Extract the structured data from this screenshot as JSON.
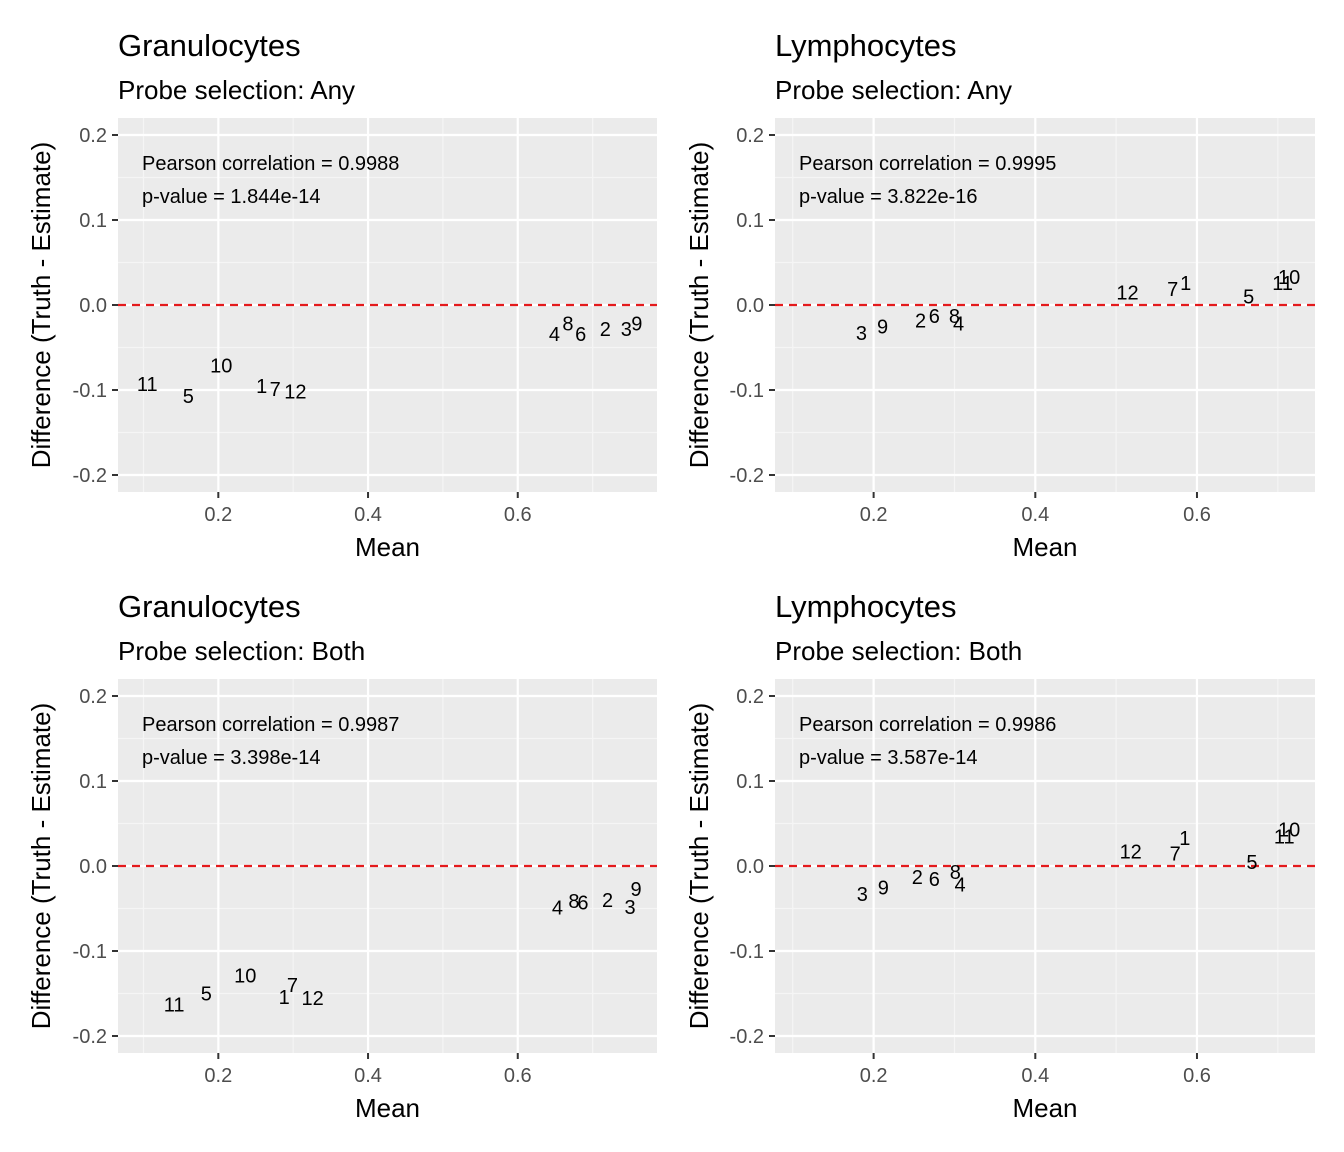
{
  "chart_data": [
    {
      "type": "scatter",
      "title": "Granulocytes",
      "subtitle": "Probe selection: Any",
      "xlabel": "Mean",
      "ylabel": "Difference (Truth - Estimate)",
      "xlim": [
        0.066,
        0.786
      ],
      "ylim": [
        -0.22,
        0.22
      ],
      "xticks": [
        0.2,
        0.4,
        0.6
      ],
      "yticks": [
        -0.2,
        -0.1,
        0.0,
        0.1,
        0.2
      ],
      "xtick_labels": [
        "0.2",
        "0.4",
        "0.6"
      ],
      "ytick_labels": [
        "-0.2",
        "-0.1",
        "0.0",
        "0.1",
        "0.2"
      ],
      "reference_line": {
        "y": 0.0,
        "color": "#e41a1c",
        "style": "dashed"
      },
      "annotations": [
        "Pearson correlation = 0.9988",
        "p-value = 1.844e-14"
      ],
      "grid": true,
      "points": [
        {
          "label": "1",
          "x": 0.258,
          "y": -0.095
        },
        {
          "label": "2",
          "x": 0.717,
          "y": -0.028
        },
        {
          "label": "3",
          "x": 0.745,
          "y": -0.028
        },
        {
          "label": "4",
          "x": 0.649,
          "y": -0.034
        },
        {
          "label": "5",
          "x": 0.16,
          "y": -0.107
        },
        {
          "label": "6",
          "x": 0.684,
          "y": -0.034
        },
        {
          "label": "7",
          "x": 0.276,
          "y": -0.099
        },
        {
          "label": "8",
          "x": 0.667,
          "y": -0.022
        },
        {
          "label": "9",
          "x": 0.759,
          "y": -0.022
        },
        {
          "label": "10",
          "x": 0.204,
          "y": -0.071
        },
        {
          "label": "11",
          "x": 0.105,
          "y": -0.093
        },
        {
          "label": "12",
          "x": 0.303,
          "y": -0.102
        }
      ]
    },
    {
      "type": "scatter",
      "title": "Lymphocytes",
      "subtitle": "Probe selection: Any",
      "xlabel": "Mean",
      "ylabel": "Difference (Truth - Estimate)",
      "xlim": [
        0.078,
        0.746
      ],
      "ylim": [
        -0.22,
        0.22
      ],
      "xticks": [
        0.2,
        0.4,
        0.6
      ],
      "yticks": [
        -0.2,
        -0.1,
        0.0,
        0.1,
        0.2
      ],
      "xtick_labels": [
        "0.2",
        "0.4",
        "0.6"
      ],
      "ytick_labels": [
        "-0.2",
        "-0.1",
        "0.0",
        "0.1",
        "0.2"
      ],
      "reference_line": {
        "y": 0.0,
        "color": "#e41a1c",
        "style": "dashed"
      },
      "annotations": [
        "Pearson correlation = 0.9995",
        "p-value = 3.822e-16"
      ],
      "grid": true,
      "points": [
        {
          "label": "1",
          "x": 0.586,
          "y": 0.026
        },
        {
          "label": "2",
          "x": 0.258,
          "y": -0.018
        },
        {
          "label": "3",
          "x": 0.185,
          "y": -0.033
        },
        {
          "label": "4",
          "x": 0.305,
          "y": -0.022
        },
        {
          "label": "5",
          "x": 0.664,
          "y": 0.01
        },
        {
          "label": "6",
          "x": 0.275,
          "y": -0.013
        },
        {
          "label": "7",
          "x": 0.57,
          "y": 0.019
        },
        {
          "label": "8",
          "x": 0.3,
          "y": -0.013
        },
        {
          "label": "9",
          "x": 0.211,
          "y": -0.025
        },
        {
          "label": "10",
          "x": 0.714,
          "y": 0.033
        },
        {
          "label": "11",
          "x": 0.706,
          "y": 0.026
        },
        {
          "label": "12",
          "x": 0.514,
          "y": 0.015
        }
      ]
    },
    {
      "type": "scatter",
      "title": "Granulocytes",
      "subtitle": "Probe selection: Both",
      "xlabel": "Mean",
      "ylabel": "Difference (Truth - Estimate)",
      "xlim": [
        0.066,
        0.786
      ],
      "ylim": [
        -0.22,
        0.22
      ],
      "xticks": [
        0.2,
        0.4,
        0.6
      ],
      "yticks": [
        -0.2,
        -0.1,
        0.0,
        0.1,
        0.2
      ],
      "xtick_labels": [
        "0.2",
        "0.4",
        "0.6"
      ],
      "ytick_labels": [
        "-0.2",
        "-0.1",
        "0.0",
        "0.1",
        "0.2"
      ],
      "reference_line": {
        "y": 0.0,
        "color": "#e41a1c",
        "style": "dashed"
      },
      "annotations": [
        "Pearson correlation = 0.9987",
        "p-value = 3.398e-14"
      ],
      "grid": true,
      "points": [
        {
          "label": "1",
          "x": 0.288,
          "y": -0.154
        },
        {
          "label": "2",
          "x": 0.72,
          "y": -0.04
        },
        {
          "label": "3",
          "x": 0.75,
          "y": -0.048
        },
        {
          "label": "4",
          "x": 0.653,
          "y": -0.049
        },
        {
          "label": "5",
          "x": 0.184,
          "y": -0.15
        },
        {
          "label": "6",
          "x": 0.687,
          "y": -0.043
        },
        {
          "label": "7",
          "x": 0.299,
          "y": -0.14
        },
        {
          "label": "8",
          "x": 0.675,
          "y": -0.041
        },
        {
          "label": "9",
          "x": 0.758,
          "y": -0.027
        },
        {
          "label": "10",
          "x": 0.236,
          "y": -0.129
        },
        {
          "label": "11",
          "x": 0.141,
          "y": -0.163
        },
        {
          "label": "12",
          "x": 0.326,
          "y": -0.155
        }
      ]
    },
    {
      "type": "scatter",
      "title": "Lymphocytes",
      "subtitle": "Probe selection: Both",
      "xlabel": "Mean",
      "ylabel": "Difference (Truth - Estimate)",
      "xlim": [
        0.078,
        0.746
      ],
      "ylim": [
        -0.22,
        0.22
      ],
      "xticks": [
        0.2,
        0.4,
        0.6
      ],
      "yticks": [
        -0.2,
        -0.1,
        0.0,
        0.1,
        0.2
      ],
      "xtick_labels": [
        "0.2",
        "0.4",
        "0.6"
      ],
      "ytick_labels": [
        "-0.2",
        "-0.1",
        "0.0",
        "0.1",
        "0.2"
      ],
      "reference_line": {
        "y": 0.0,
        "color": "#e41a1c",
        "style": "dashed"
      },
      "annotations": [
        "Pearson correlation = 0.9986",
        "p-value = 3.587e-14"
      ],
      "grid": true,
      "points": [
        {
          "label": "1",
          "x": 0.585,
          "y": 0.033
        },
        {
          "label": "2",
          "x": 0.254,
          "y": -0.013
        },
        {
          "label": "3",
          "x": 0.186,
          "y": -0.033
        },
        {
          "label": "4",
          "x": 0.307,
          "y": -0.022
        },
        {
          "label": "5",
          "x": 0.668,
          "y": 0.005
        },
        {
          "label": "6",
          "x": 0.275,
          "y": -0.015
        },
        {
          "label": "7",
          "x": 0.573,
          "y": 0.015
        },
        {
          "label": "8",
          "x": 0.301,
          "y": -0.007
        },
        {
          "label": "9",
          "x": 0.212,
          "y": -0.025
        },
        {
          "label": "10",
          "x": 0.714,
          "y": 0.043
        },
        {
          "label": "11",
          "x": 0.708,
          "y": 0.035
        },
        {
          "label": "12",
          "x": 0.518,
          "y": 0.017
        }
      ]
    }
  ]
}
